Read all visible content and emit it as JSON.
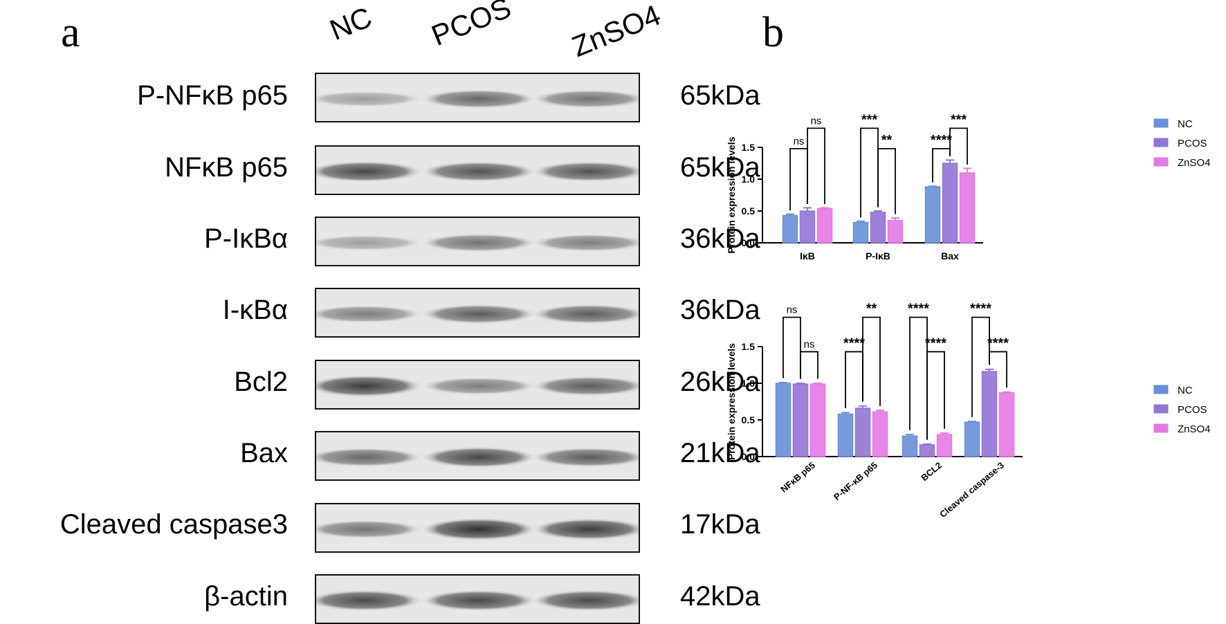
{
  "panels": {
    "a": "a",
    "b": "b"
  },
  "lanes": [
    "NC",
    "PCOS",
    "ZnSO4"
  ],
  "blots": [
    {
      "protein": "P-NFκB p65",
      "kda": "65kDa",
      "bands": [
        0.45,
        0.7,
        0.65
      ]
    },
    {
      "protein": "NFκB p65",
      "kda": "65kDa",
      "bands": [
        0.85,
        0.8,
        0.8
      ]
    },
    {
      "protein": "P-IκBα",
      "kda": "36kDa",
      "bands": [
        0.45,
        0.65,
        0.6
      ]
    },
    {
      "protein": "I-κBα",
      "kda": "36kDa",
      "bands": [
        0.6,
        0.75,
        0.75
      ]
    },
    {
      "protein": "Bcl2",
      "kda": "26kDa",
      "bands": [
        0.9,
        0.6,
        0.75
      ]
    },
    {
      "protein": "Bax",
      "kda": "21kDa",
      "bands": [
        0.7,
        0.85,
        0.75
      ]
    },
    {
      "protein": "Cleaved caspase3",
      "kda": "17kDa",
      "bands": [
        0.65,
        0.95,
        0.9
      ]
    },
    {
      "protein": "β-actin",
      "kda": "42kDa",
      "bands": [
        0.85,
        0.85,
        0.85
      ]
    }
  ],
  "colors": {
    "NC": "#6a8fd6",
    "PCOS": "#9474d6",
    "ZnSO4": "#e479e4"
  },
  "chart_data": [
    {
      "type": "bar",
      "ylabel": "Protein expression levels",
      "categories": [
        "IκB",
        "P-IκB",
        "Bax"
      ],
      "ylim": [
        0,
        1.5
      ],
      "yticks": [
        "0.0",
        "0.5",
        "1.0",
        "1.5"
      ],
      "legend_position": "right",
      "series": [
        {
          "name": "NC",
          "values": [
            0.43,
            0.32,
            0.88
          ],
          "errors": [
            0.02,
            0.02,
            0.01
          ]
        },
        {
          "name": "PCOS",
          "values": [
            0.5,
            0.48,
            1.25
          ],
          "errors": [
            0.05,
            0.02,
            0.05
          ]
        },
        {
          "name": "ZnSO4",
          "values": [
            0.54,
            0.35,
            1.1
          ],
          "errors": [
            0.01,
            0.04,
            0.07
          ]
        }
      ],
      "significance": [
        {
          "category": 0,
          "from": 0,
          "to": 1,
          "level": 1.48,
          "label": "ns"
        },
        {
          "category": 0,
          "from": 1,
          "to": 2,
          "level": 1.8,
          "label": "ns"
        },
        {
          "category": 1,
          "from": 0,
          "to": 1,
          "level": 1.8,
          "label": "***"
        },
        {
          "category": 1,
          "from": 1,
          "to": 2,
          "level": 1.48,
          "label": "**"
        },
        {
          "category": 2,
          "from": 0,
          "to": 1,
          "level": 1.48,
          "label": "****"
        },
        {
          "category": 2,
          "from": 1,
          "to": 2,
          "level": 1.8,
          "label": "***"
        }
      ]
    },
    {
      "type": "bar",
      "ylabel": "Protein expression levels",
      "categories": [
        "NFκB p65",
        "P-NF-κB p65",
        "BCL2",
        "Cleaved caspase-3"
      ],
      "ylim": [
        0,
        1.5
      ],
      "yticks": [
        "0.0",
        "0.5",
        "1.0",
        "1.5"
      ],
      "legend_position": "right",
      "series": [
        {
          "name": "NC",
          "values": [
            1.0,
            0.58,
            0.28,
            0.47
          ],
          "errors": [
            0.01,
            0.02,
            0.02,
            0.01
          ]
        },
        {
          "name": "PCOS",
          "values": [
            0.99,
            0.66,
            0.16,
            1.16
          ],
          "errors": [
            0.01,
            0.03,
            0.01,
            0.03
          ]
        },
        {
          "name": "ZnSO4",
          "values": [
            0.99,
            0.61,
            0.3,
            0.87
          ],
          "errors": [
            0.01,
            0.02,
            0.02,
            0.01
          ]
        }
      ],
      "significance": [
        {
          "category": 0,
          "from": 0,
          "to": 1,
          "level": 1.9,
          "label": "ns"
        },
        {
          "category": 0,
          "from": 1,
          "to": 2,
          "level": 1.43,
          "label": "ns"
        },
        {
          "category": 1,
          "from": 0,
          "to": 1,
          "level": 1.43,
          "label": "****"
        },
        {
          "category": 1,
          "from": 1,
          "to": 2,
          "level": 1.9,
          "label": "**"
        },
        {
          "category": 2,
          "from": 0,
          "to": 1,
          "level": 1.9,
          "label": "****"
        },
        {
          "category": 2,
          "from": 1,
          "to": 2,
          "level": 1.43,
          "label": "****"
        },
        {
          "category": 3,
          "from": 0,
          "to": 1,
          "level": 1.9,
          "label": "****"
        },
        {
          "category": 3,
          "from": 1,
          "to": 2,
          "level": 1.43,
          "label": "****"
        }
      ]
    }
  ]
}
